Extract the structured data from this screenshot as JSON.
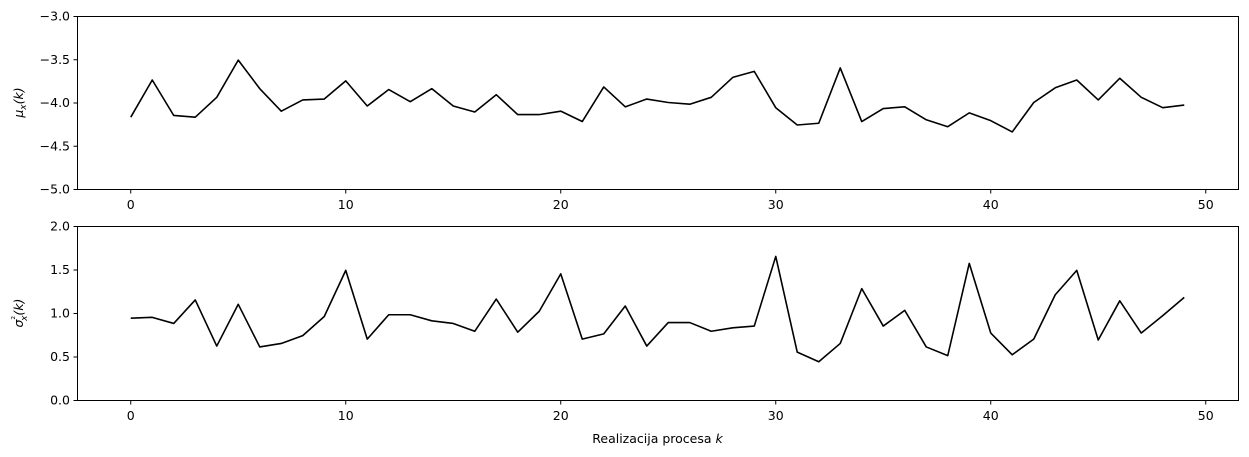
{
  "chart_data": [
    {
      "type": "line",
      "ylabel": "μx(k)",
      "xlabel": "",
      "xlim": [
        -2.5,
        51.5
      ],
      "ylim": [
        -5.0,
        -3.0
      ],
      "xticks": [
        0,
        10,
        20,
        30,
        40,
        50
      ],
      "yticks": [
        -5.0,
        -4.5,
        -4.0,
        -3.5,
        -3.0
      ],
      "ytick_labels": [
        "−5.0",
        "−4.5",
        "−4.0",
        "−3.5",
        "−3.0"
      ],
      "grid": false,
      "series": [
        {
          "color": "#000000",
          "x": [
            0,
            1,
            2,
            3,
            4,
            5,
            6,
            7,
            8,
            9,
            10,
            11,
            12,
            13,
            14,
            15,
            16,
            17,
            18,
            19,
            20,
            21,
            22,
            23,
            24,
            25,
            26,
            27,
            28,
            29,
            30,
            31,
            32,
            33,
            34,
            35,
            36,
            37,
            38,
            39,
            40,
            41,
            42,
            43,
            44,
            45,
            46,
            47,
            48,
            49
          ],
          "y": [
            -4.17,
            -3.74,
            -4.15,
            -4.17,
            -3.94,
            -3.51,
            -3.84,
            -4.1,
            -3.97,
            -3.96,
            -3.75,
            -4.04,
            -3.85,
            -3.99,
            -3.84,
            -4.04,
            -4.11,
            -3.91,
            -4.14,
            -4.14,
            -4.1,
            -4.22,
            -3.82,
            -4.05,
            -3.96,
            -4.0,
            -4.02,
            -3.94,
            -3.71,
            -3.64,
            -4.06,
            -4.26,
            -4.24,
            -3.6,
            -4.22,
            -4.07,
            -4.05,
            -4.2,
            -4.28,
            -4.12,
            -4.21,
            -4.34,
            -4.0,
            -3.83,
            -3.74,
            -3.97,
            -3.72,
            -3.94,
            -4.06,
            -4.03
          ]
        }
      ]
    },
    {
      "type": "line",
      "ylabel": "σx²(k)",
      "xlabel": "Realizacija procesa k",
      "xlim": [
        -2.5,
        51.5
      ],
      "ylim": [
        0.0,
        2.0
      ],
      "xticks": [
        0,
        10,
        20,
        30,
        40,
        50
      ],
      "yticks": [
        0.0,
        0.5,
        1.0,
        1.5,
        2.0
      ],
      "ytick_labels": [
        "0.0",
        "0.5",
        "1.0",
        "1.5",
        "2.0"
      ],
      "grid": false,
      "series": [
        {
          "color": "#000000",
          "x": [
            0,
            1,
            2,
            3,
            4,
            5,
            6,
            7,
            8,
            9,
            10,
            11,
            12,
            13,
            14,
            15,
            16,
            17,
            18,
            19,
            20,
            21,
            22,
            23,
            24,
            25,
            26,
            27,
            28,
            29,
            30,
            31,
            32,
            33,
            34,
            35,
            36,
            37,
            38,
            39,
            40,
            41,
            42,
            43,
            44,
            45,
            46,
            47,
            48,
            49
          ],
          "y": [
            0.94,
            0.95,
            0.88,
            1.15,
            0.62,
            1.1,
            0.61,
            0.65,
            0.74,
            0.96,
            1.49,
            0.7,
            0.98,
            0.98,
            0.91,
            0.88,
            0.79,
            1.16,
            0.78,
            1.02,
            1.45,
            0.7,
            0.76,
            1.08,
            0.62,
            0.89,
            0.89,
            0.79,
            0.83,
            0.85,
            1.65,
            0.55,
            0.44,
            0.65,
            1.28,
            0.85,
            1.03,
            0.61,
            0.51,
            1.57,
            0.77,
            0.52,
            0.7,
            1.21,
            1.49,
            0.69,
            1.14,
            0.77,
            0.97,
            1.18
          ]
        }
      ]
    }
  ]
}
